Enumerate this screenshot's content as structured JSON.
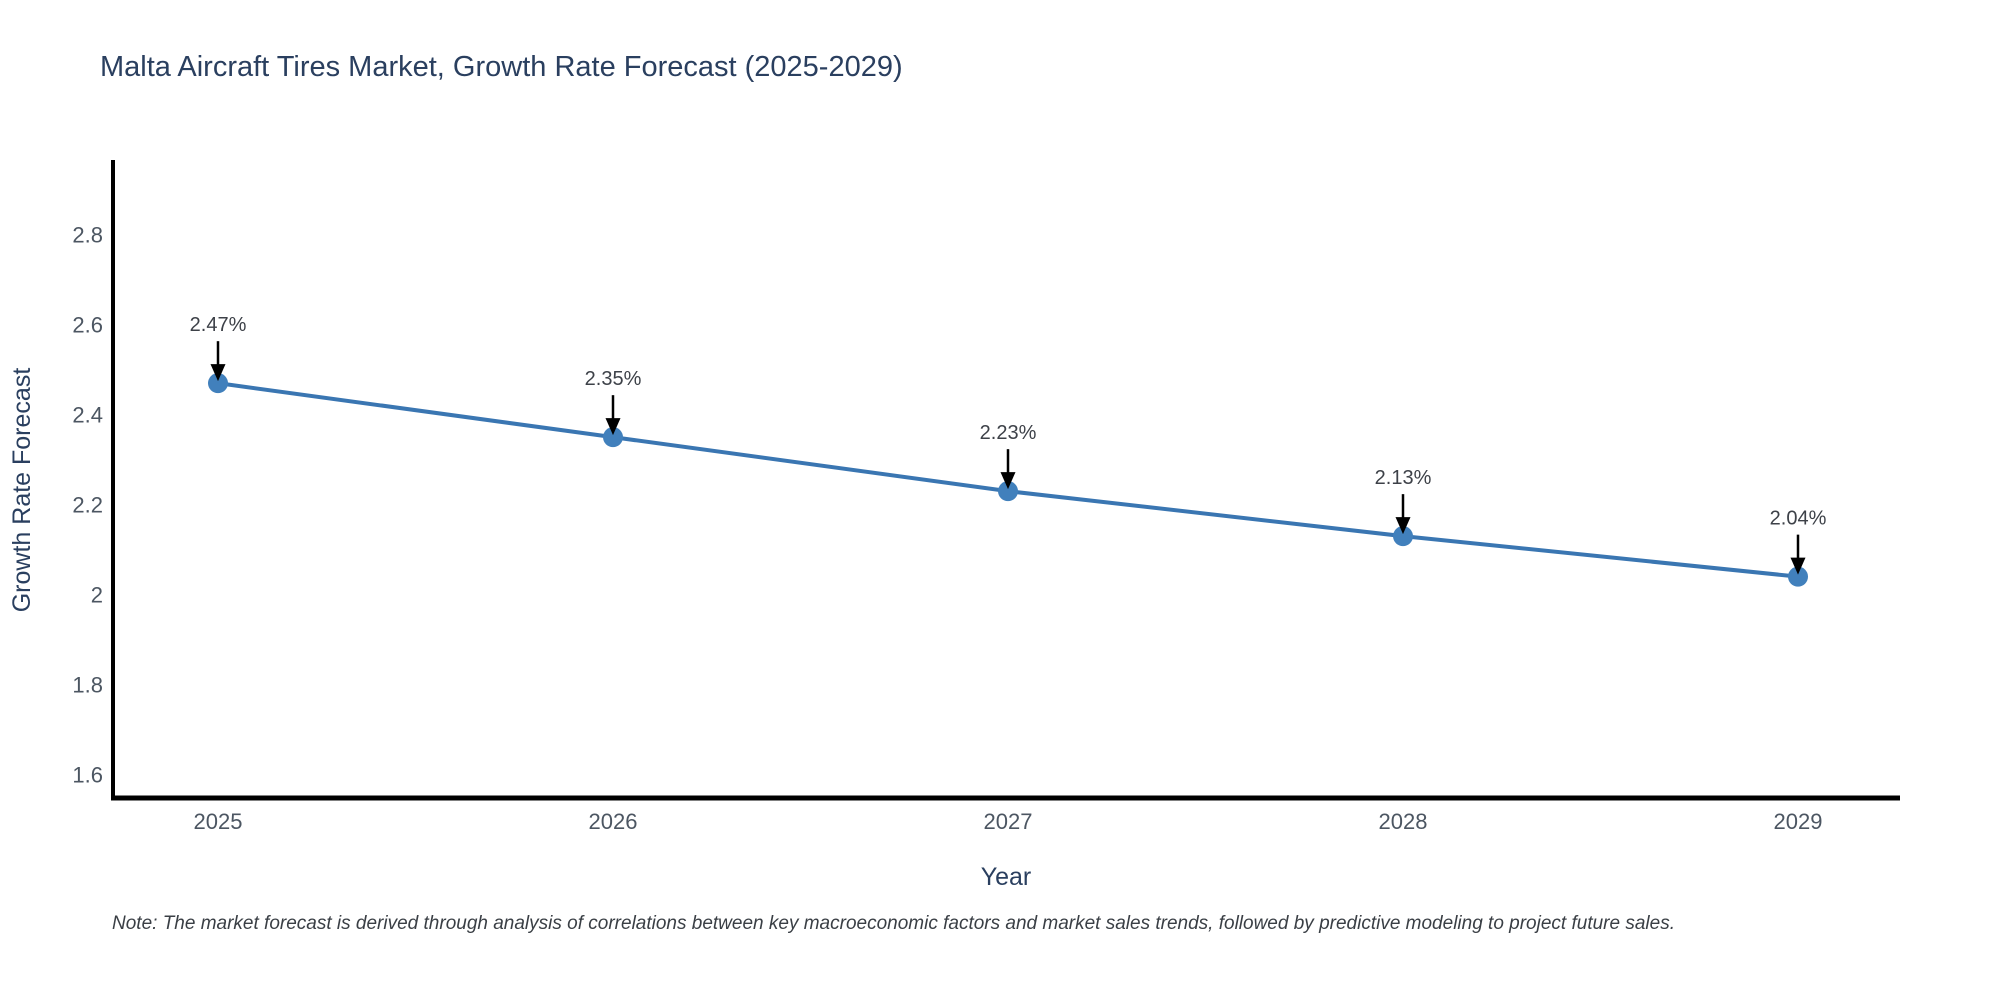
{
  "chart_data": {
    "type": "line",
    "title": "Malta Aircraft Tires Market, Growth Rate Forecast (2025-2029)",
    "xlabel": "Year",
    "ylabel": "Growth Rate Forecast",
    "categories": [
      "2025",
      "2026",
      "2027",
      "2028",
      "2029"
    ],
    "series": [
      {
        "name": "Growth Rate Forecast",
        "values": [
          2.47,
          2.35,
          2.23,
          2.13,
          2.04
        ]
      }
    ],
    "point_labels": [
      "2.47%",
      "2.35%",
      "2.23%",
      "2.13%",
      "2.04%"
    ],
    "ytick_labels": [
      "1.6",
      "1.8",
      "2",
      "2.2",
      "2.4",
      "2.6",
      "2.8"
    ],
    "ytick_values": [
      1.6,
      1.8,
      2.0,
      2.2,
      2.4,
      2.6,
      2.8
    ],
    "ylim": [
      1.548,
      2.966
    ],
    "grid": false,
    "legend_position": "none",
    "annotations_have_arrows": true
  },
  "note": {
    "text": "Note: The market forecast is derived through analysis of correlations between key macroeconomic factors and market sales trends, followed by predictive modeling to project future sales."
  },
  "colors": {
    "title": "#2a3f5f",
    "axis_title": "#2a3f5f",
    "tick_label": "#4c5662",
    "annotation_label": "#3d4148",
    "note_text": "#3a3f45",
    "axis_line": "#000000",
    "line": "#3a76b2",
    "marker": "#4180bc",
    "arrow": "#000000",
    "background": "#ffffff"
  }
}
